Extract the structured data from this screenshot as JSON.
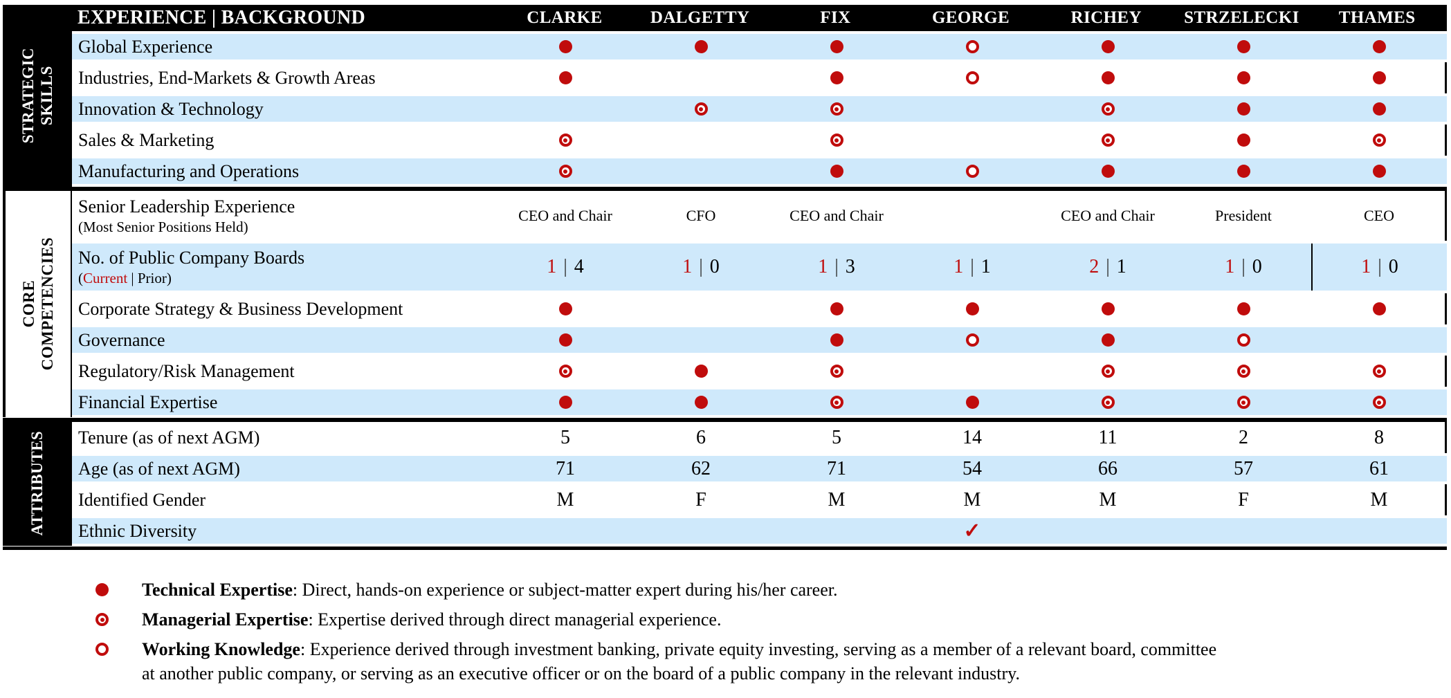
{
  "colors": {
    "accent_red": "#c00c0c",
    "row_stripe_blue": "#cfe9fb",
    "header_black": "#000000"
  },
  "header": {
    "row_label": "EXPERIENCE | BACKGROUND",
    "columns": [
      "CLARKE",
      "DALGETTY",
      "FIX",
      "GEORGE",
      "RICHEY",
      "STRZELECKI",
      "THAMES"
    ]
  },
  "symbol_legend_tokens": {
    "T": "technical-expertise",
    "M": "managerial-expertise",
    "W": "working-knowledge"
  },
  "sections": [
    {
      "id": "strategic-skills",
      "sidebar": {
        "line1": "STRATEGIC",
        "line2": "SKILLS",
        "style": "dark"
      },
      "rows": [
        {
          "id": "global-experience",
          "label": "Global Experience",
          "bg": "blue",
          "type": "symbols",
          "cells": [
            "T",
            "T",
            "T",
            "W",
            "T",
            "T",
            "T"
          ]
        },
        {
          "id": "industries-end-markets-growth-areas",
          "label": "Industries, End-Markets & Growth Areas",
          "bg": "white",
          "type": "symbols",
          "cells": [
            "T",
            "",
            "T",
            "W",
            "T",
            "T",
            "T"
          ]
        },
        {
          "id": "innovation-technology",
          "label": "Innovation & Technology",
          "bg": "blue",
          "type": "symbols",
          "cells": [
            "",
            "M",
            "M",
            "",
            "M",
            "T",
            "T"
          ]
        },
        {
          "id": "sales-marketing",
          "label": "Sales & Marketing",
          "bg": "white",
          "type": "symbols",
          "cells": [
            "M",
            "",
            "M",
            "",
            "M",
            "T",
            "M"
          ]
        },
        {
          "id": "manufacturing-and-operations",
          "label": "Manufacturing and Operations",
          "bg": "blue",
          "type": "symbols",
          "cells": [
            "M",
            "",
            "T",
            "W",
            "T",
            "T",
            "T"
          ]
        }
      ]
    },
    {
      "id": "core-competencies",
      "sidebar": {
        "line1": "CORE",
        "line2": "COMPETENCIES",
        "style": "light"
      },
      "rows": [
        {
          "id": "senior-leadership-experience",
          "label": "Senior Leadership Experience",
          "sublabel": "(Most Senior Positions Held)",
          "bg": "white",
          "type": "text",
          "tall": "h72",
          "cell_font": "small",
          "cells": [
            "CEO and Chair",
            "CFO",
            "CEO and Chair",
            "",
            "CEO and Chair",
            "President",
            "CEO"
          ]
        },
        {
          "id": "public-company-boards",
          "label": "No. of Public Company Boards",
          "sublabel_prefix": "(",
          "sublabel_red": "Current",
          "sublabel_rest": " | Prior)",
          "bg": "blue",
          "type": "boards",
          "tall": "h76",
          "divider_before": 6,
          "cells": [
            [
              "1",
              "4"
            ],
            [
              "1",
              "0"
            ],
            [
              "1",
              "3"
            ],
            [
              "1",
              "1"
            ],
            [
              "2",
              "1"
            ],
            [
              "1",
              "0"
            ],
            [
              "1",
              "0"
            ]
          ]
        },
        {
          "id": "corporate-strategy-business-development",
          "label": "Corporate Strategy & Business Development",
          "bg": "white",
          "type": "symbols",
          "cells": [
            "T",
            "",
            "T",
            "T",
            "T",
            "T",
            "T"
          ]
        },
        {
          "id": "governance",
          "label": "Governance",
          "bg": "blue",
          "type": "symbols",
          "cells": [
            "T",
            "",
            "T",
            "W",
            "T",
            "W",
            ""
          ]
        },
        {
          "id": "regulatory-risk-management",
          "label": "Regulatory/Risk Management",
          "bg": "white",
          "type": "symbols",
          "cells": [
            "M",
            "T",
            "M",
            "",
            "M",
            "M",
            "M"
          ]
        },
        {
          "id": "financial-expertise",
          "label": "Financial Expertise",
          "bg": "blue",
          "type": "symbols",
          "cells": [
            "T",
            "T",
            "M",
            "T",
            "M",
            "M",
            "M"
          ]
        }
      ]
    },
    {
      "id": "attributes",
      "sidebar": {
        "line1": "ATTRIBUTES",
        "line2": "",
        "style": "dark"
      },
      "rows": [
        {
          "id": "tenure",
          "label": "Tenure (as of next AGM)",
          "bg": "white",
          "type": "text",
          "cells": [
            "5",
            "6",
            "5",
            "14",
            "11",
            "2",
            "8"
          ]
        },
        {
          "id": "age",
          "label": "Age (as of next AGM)",
          "bg": "blue",
          "type": "text",
          "cells": [
            "71",
            "62",
            "71",
            "54",
            "66",
            "57",
            "61"
          ]
        },
        {
          "id": "identified-gender",
          "label": "Identified Gender",
          "bg": "white",
          "type": "text",
          "cells": [
            "M",
            "F",
            "M",
            "M",
            "M",
            "F",
            "M"
          ]
        },
        {
          "id": "ethnic-diversity",
          "label": "Ethnic Diversity",
          "bg": "blue",
          "type": "check",
          "cells": [
            "",
            "",
            "",
            "✓",
            "",
            "",
            ""
          ]
        }
      ]
    }
  ],
  "legend": {
    "items": [
      {
        "symbol": "technical-expertise",
        "term": "Technical Expertise",
        "text": ": Direct, hands-on experience or subject-matter expert during his/her career."
      },
      {
        "symbol": "managerial-expertise",
        "term": "Managerial Expertise",
        "text": ": Expertise derived through direct managerial experience."
      },
      {
        "symbol": "working-knowledge",
        "term": "Working Knowledge",
        "text": ": Experience derived through investment banking, private equity investing, serving as a member of a relevant board, committee",
        "text2": "at another public company, or serving as an executive officer or on the board of a public company in the relevant industry."
      }
    ]
  }
}
